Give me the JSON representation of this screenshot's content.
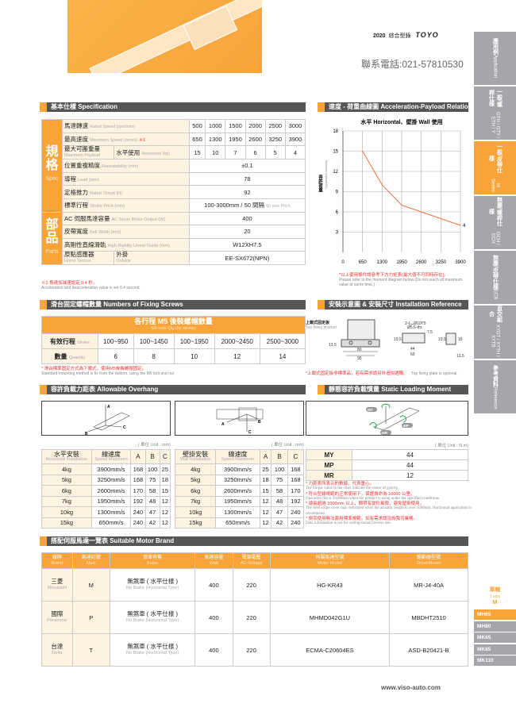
{
  "header": {
    "year": "2020",
    "catalog": "綜合型錄",
    "brand_logo": "TOYO",
    "phone": "聯系電話:021-57810530"
  },
  "sidebar": {
    "tabs": [
      {
        "zh": "應用例",
        "en": "Application"
      },
      {
        "zh": "一般/螺桿仕樣",
        "en": "GTH / GTY / ETH / Y"
      },
      {
        "zh": "一般/皮帶仕樣",
        "en": "M Series",
        "active": true
      },
      {
        "zh": "無塵/螺桿仕樣",
        "en": "GCH / ECH"
      },
      {
        "zh": "無塵/皮帶仕樣",
        "en": "ECB"
      },
      {
        "zh": "直交組合",
        "en": "XYGT / XYTH / XYTB"
      },
      {
        "zh": "參考資料",
        "en": "Reference"
      }
    ],
    "axis_zh": "單軸",
    "axis_en": "1 axis",
    "axis_m": "M",
    "models": [
      "MH65",
      "MH80",
      "MK65",
      "MK85",
      "MK110"
    ],
    "active_model": "MH65"
  },
  "spec": {
    "title": "基本仕樣 Specification",
    "group1": {
      "zh": "規格",
      "en": "Spec"
    },
    "group2": {
      "zh": "部品",
      "en": "Parts"
    },
    "rows": {
      "rated_speed": {
        "zh": "馬達轉速",
        "en": "Rated Speed (rpm/min)",
        "values": [
          "500",
          "1000",
          "1500",
          "2000",
          "2500",
          "3000"
        ]
      },
      "max_speed": {
        "zh": "最高速度",
        "en": "Maximum Speed (mm/s)",
        "mark": "※1",
        "values": [
          "650",
          "1300",
          "1950",
          "2600",
          "3250",
          "3900"
        ]
      },
      "payload": {
        "zh": "最大可搬重量",
        "en": "Maximum Payload",
        "sub_zh": "水平使用",
        "sub_en": "Horizontal (kg)",
        "values": [
          "15",
          "10",
          "7",
          "6",
          "5",
          "4"
        ]
      },
      "repeat": {
        "zh": "位置重複精度",
        "en": "Repeatability (mm)",
        "value": "±0.1"
      },
      "lead": {
        "zh": "導程",
        "en": "Lead (mm)",
        "value": "78"
      },
      "thrust": {
        "zh": "定格推力",
        "en": "Rated Thrust (N)",
        "value": "92"
      },
      "stroke": {
        "zh": "標準行程",
        "en": "Stroke Pitch (mm)",
        "value": "100-3000mm / 50 間隔",
        "value_en": "50 mm Pitch"
      },
      "motor": {
        "zh": "AC 伺服馬達容量",
        "en": "AC Servo Motor Output (W)",
        "value": "400"
      },
      "belt": {
        "zh": "皮帶寬度",
        "en": "Belt Width (mm)",
        "value": "20"
      },
      "guide": {
        "zh": "高剛性直線滑軌",
        "en": "High Rigidity Linear Guide (mm)",
        "value": "W12XH7.5"
      },
      "sensor": {
        "zh": "原點感應器",
        "en": "Home Sensor",
        "sub_zh": "外掛",
        "sub_en": "Outside",
        "value": "EE-SX672(NPN)"
      }
    },
    "note_zh": "※1 馬達加減速設定 0.4 秒。",
    "note_en": "Acceleration and deacceleration value is set 0.4 second."
  },
  "chart_title": "速度 - 荷重曲線圖 Acceleration-Payload Relationship",
  "chart_data": {
    "type": "line",
    "title": "水平 Horizontal、壁掛 Wall 使用",
    "xlabel": "容許線速度",
    "xlabel_en": "Maximum speed(MM/S)",
    "ylabel": "容許荷重",
    "ylabel_en": "Maximum payload(KG)",
    "x": [
      650,
      1300,
      1950,
      2600,
      3250,
      3900
    ],
    "y": [
      15,
      10,
      7,
      6,
      5,
      4
    ],
    "xlim": [
      0,
      3900
    ],
    "ylim": [
      0,
      18
    ],
    "xticks": [
      "0",
      "650",
      "1300",
      "1950",
      "2600",
      "3250",
      "3900"
    ],
    "yticks": [
      "3",
      "6",
      "9",
      "12",
      "15",
      "18"
    ],
    "end_label": "4",
    "grid": true,
    "color": "#f07040"
  },
  "chart_note_zh": "*以上使用條件請參考下方力矩表(最大值不可同時存在)。",
  "chart_note_en": "Please refer to the moment diagram below.(Do not reach all maximum value at same time.)",
  "screws": {
    "title": "滑台固定螺帽數量 Numbers of Fixing Screws",
    "head_zh": "各行程 M5 後裝螺帽數量",
    "head_en": "M5 nuts Qty.(by stroke)",
    "stroke_zh": "有效行程",
    "stroke_en": "Stroke",
    "qty_zh": "數量",
    "qty_en": "Quantity",
    "strokes": [
      "100~950",
      "100~1450",
      "100~1950",
      "2000~2450",
      "2500~3000"
    ],
    "qty": [
      "6",
      "8",
      "10",
      "12",
      "14"
    ],
    "note_zh": "* 滑台標準固定方式為下鎖式，使用M5後裝螺帽固定。",
    "note_en": "Standard mounting method is fix from the bottom, using the M5 bolt and    nut"
  },
  "install": {
    "title": "安裝示意圖 & 安裝尺寸 Installation Reference",
    "bracket_zh": "上鎖式固定板",
    "bracket_en": "Top fixing bracket",
    "dims": {
      "d1": "13.5",
      "d2": "80",
      "d3": "95",
      "hole": "2-L⌴Ø10∇5",
      "hole2": "Ø5.6-thr.",
      "d4": "7.5",
      "d5": "19.5",
      "d6": "44",
      "d7": "60",
      "d8": "19.5",
      "d9": "15",
      "d10": "13.5"
    },
    "note_zh": "*上鎖式固定板非標準品，若有需求請另外追加選購。",
    "note_en": "Top fixing plate is optional."
  },
  "overhang": {
    "title": "容許負載力距表 Allowable Overhang",
    "unit": "( 單位 Unit : mm)",
    "horizontal": {
      "h_zh": "水平安裝",
      "h_en": "Horizontal Installation",
      "rows": [
        [
          "4kg",
          "3900mm/s",
          "168",
          "100",
          "25"
        ],
        [
          "5kg",
          "3250mm/s",
          "168",
          "75",
          "18"
        ],
        [
          "6kg",
          "2600mm/s",
          "170",
          "58",
          "15"
        ],
        [
          "7kg",
          "1950mm/s",
          "192",
          "48",
          "12"
        ],
        [
          "10kg",
          "1300mm/s",
          "240",
          "47",
          "12"
        ],
        [
          "15kg",
          "650mm/s",
          "240",
          "42",
          "12"
        ]
      ]
    },
    "wall": {
      "h_zh": "壁掛安裝",
      "h_en": "Wall Installation",
      "rows": [
        [
          "4kg",
          "3900mm/s",
          "25",
          "100",
          "168"
        ],
        [
          "5kg",
          "3250mm/s",
          "18",
          "75",
          "168"
        ],
        [
          "6kg",
          "2600mm/s",
          "15",
          "58",
          "170"
        ],
        [
          "7kg",
          "1950mm/s",
          "12",
          "48",
          "192"
        ],
        [
          "10kg",
          "1300mm/s",
          "12",
          "47",
          "240"
        ],
        [
          "15kg",
          "650mm/s",
          "12",
          "42",
          "240"
        ]
      ]
    },
    "speed_zh": "線速度",
    "speed_en": "Speed Maximum",
    "cols": [
      "A",
      "B",
      "C"
    ]
  },
  "moment": {
    "title": "靜態容許負載慣量 Static Loading Moment",
    "unit": "( 單位 Unit : N.m)",
    "rows": [
      [
        "MY",
        "44"
      ],
      [
        "MP",
        "44"
      ],
      [
        "MR",
        "12"
      ]
    ],
    "notes": [
      [
        "* 力距表所表示的數據，代表重心。",
        "The torque value in the chart indicate the center of gravity."
      ],
      [
        "* 符合型錄規範的正常使用下，保證壽命為 10000 公里。",
        "Operation life is 10,000km when the product is using under the specified conditions."
      ],
      [
        "* 總長超過 1000mm 以上，鋼帶有變形風險，避免壁掛使用。",
        "The steel stripe cover may deformed when the actuator length is over 1000mm. Horizontal application is recommend."
      ],
      [
        "* 倒吊使用無法套用標準規範，如有需求請洽詢我司業務。",
        "Data information is not for ceiling-mount inverse use."
      ]
    ]
  },
  "motor": {
    "title": "搭配伺服馬達一覽表 Suitable Motor Brand",
    "headers": [
      [
        "廠牌",
        "Brand"
      ],
      [
        "馬達記號",
        "Mark"
      ],
      [
        "煞車有無",
        "Brake"
      ],
      [
        "馬達容量",
        "Watt"
      ],
      [
        "電源電壓",
        "AC-Voltage"
      ],
      [
        "伺服馬達型號",
        "Motor Model"
      ],
      [
        "驅動器型號",
        "DriverModel"
      ]
    ],
    "rows": [
      {
        "brand": "三菱",
        "brand_en": "Mitsubishi",
        "mark": "M",
        "brake": "無煞車 ( 水平仕樣 )",
        "brake_en": "No Brake (Horizontal Type)",
        "watt": "400",
        "volt": "220",
        "model": "HG-KR43",
        "driver": "MR-J4-40A"
      },
      {
        "brand": "國際",
        "brand_en": "Panasonic",
        "mark": "P",
        "brake": "無煞車 ( 水平仕樣 )",
        "brake_en": "No Brake (Horizontal Type)",
        "watt": "400",
        "volt": "220",
        "model": "MHMD042G1U",
        "driver": "MBDHT2510"
      },
      {
        "brand": "台達",
        "brand_en": "Delta",
        "mark": "T",
        "brake": "無煞車 ( 水平仕樣 )",
        "brake_en": "No Brake (Horizontal Type)",
        "watt": "400",
        "volt": "220",
        "model": "ECMA-C20604ES",
        "driver": "ASD-B20421-B"
      }
    ]
  },
  "footer": {
    "url": "www.viso-auto.com"
  }
}
